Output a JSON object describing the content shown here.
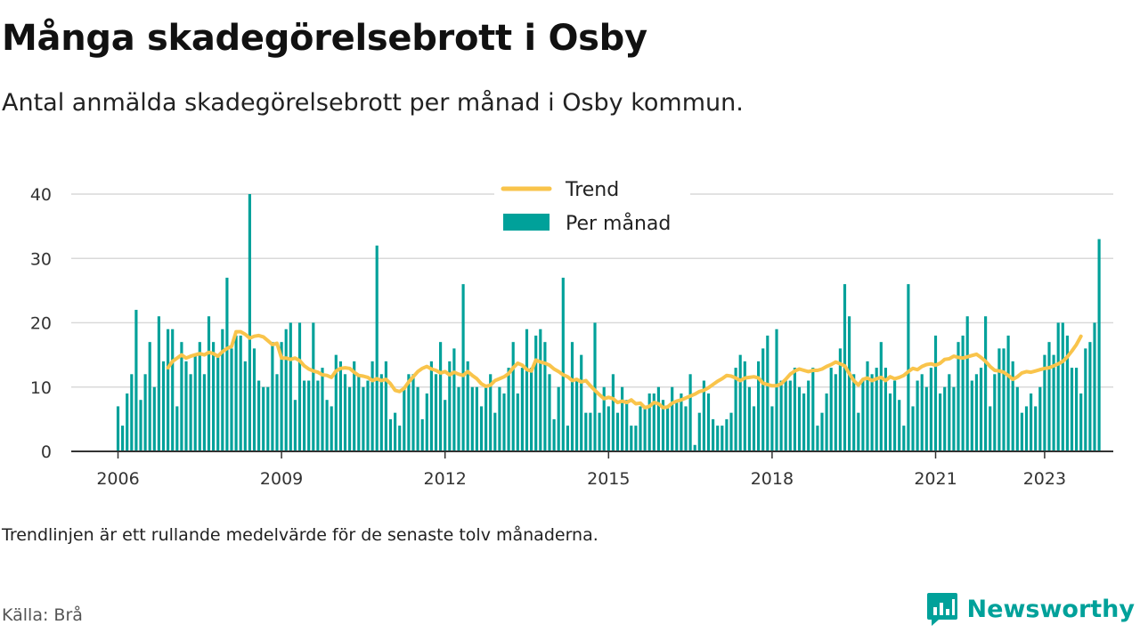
{
  "title": "Många skadegörelsebrott i Osby",
  "subtitle": "Antal anmälda skadegörelsebrott per månad i Osby kommun.",
  "note": "Trendlinjen är ett rullande medelvärde för de senaste tolv månaderna.",
  "source": "Källa: Brå",
  "brand": {
    "name": "Newsworthy",
    "icon": "bar-chart-logo-icon"
  },
  "colors": {
    "bars": "#00a19a",
    "trend": "#f9c44b",
    "grid": "#d9d9d9",
    "axis": "#333333"
  },
  "chart_data": {
    "type": "bar",
    "start": "2006-01",
    "frequency": "monthly",
    "ylim": [
      0,
      40
    ],
    "yticks": [
      0,
      10,
      20,
      30,
      40
    ],
    "xticks": [
      "2006",
      "2009",
      "2012",
      "2015",
      "2018",
      "2021",
      "2023"
    ],
    "grid": true,
    "legend": {
      "position": "top-center",
      "entries": [
        "Trend",
        "Per månad"
      ]
    },
    "series": [
      {
        "name": "Per månad",
        "type": "bar",
        "values": [
          7,
          4,
          9,
          12,
          22,
          8,
          12,
          17,
          10,
          21,
          14,
          19,
          19,
          7,
          17,
          14,
          12,
          15,
          17,
          12,
          21,
          17,
          15,
          19,
          27,
          16,
          18,
          18,
          14,
          40,
          16,
          11,
          10,
          10,
          17,
          12,
          17,
          19,
          20,
          8,
          20,
          11,
          11,
          20,
          11,
          13,
          8,
          7,
          15,
          14,
          12,
          10,
          14,
          12,
          10,
          11,
          14,
          32,
          12,
          14,
          5,
          6,
          4,
          10,
          12,
          12,
          10,
          5,
          9,
          14,
          12,
          17,
          8,
          14,
          16,
          10,
          26,
          14,
          10,
          10,
          7,
          10,
          12,
          6,
          10,
          9,
          13,
          17,
          9,
          13,
          19,
          13,
          18,
          19,
          17,
          12,
          5,
          10,
          27,
          4,
          17,
          11,
          15,
          6,
          6,
          20,
          6,
          10,
          7,
          12,
          6,
          10,
          8,
          4,
          4,
          7,
          7,
          9,
          9,
          10,
          8,
          7,
          10,
          8,
          9,
          7,
          12,
          1,
          6,
          11,
          9,
          5,
          4,
          4,
          5,
          6,
          13,
          15,
          14,
          10,
          7,
          14,
          16,
          18,
          7,
          19,
          11,
          11,
          11,
          13,
          10,
          9,
          11,
          13,
          4,
          6,
          9,
          13,
          12,
          16,
          26,
          21,
          12,
          6,
          11,
          14,
          12,
          13,
          17,
          13,
          9,
          11,
          8,
          4,
          26,
          7,
          11,
          12,
          10,
          13,
          18,
          9,
          10,
          12,
          10,
          17,
          18,
          21,
          11,
          12,
          13,
          21,
          7,
          12,
          16,
          16,
          18,
          14,
          10,
          6,
          7,
          9,
          7,
          10,
          15,
          17,
          15,
          20,
          20,
          18,
          13,
          13,
          9,
          16,
          17,
          20,
          33
        ]
      },
      {
        "name": "Trend",
        "type": "line",
        "start": "2006-12",
        "values": [
          13,
          14,
          14.5,
          15,
          14.5,
          14.8,
          15.0,
          15.2,
          15,
          15.4,
          15.2,
          14.8,
          15.5,
          16,
          16.3,
          18.6,
          18.6,
          18.2,
          17.6,
          17.9,
          18,
          17.8,
          17.2,
          16.6,
          16.8,
          14.5,
          14.5,
          14.3,
          14.5,
          14.1,
          13.3,
          12.8,
          12.5,
          12.3,
          11.9,
          11.8,
          11.5,
          12.5,
          12.9,
          13.0,
          12.9,
          12.3,
          11.8,
          11.7,
          11.5,
          11.0,
          11.3,
          11.0,
          11.2,
          10.5,
          9.5,
          9.3,
          9.8,
          10.8,
          11.6,
          12.4,
          12.9,
          13.2,
          12.8,
          12.6,
          12.2,
          12.4,
          11.9,
          12.3,
          12.0,
          11.8,
          12.4,
          11.8,
          11.3,
          10.5,
          10.1,
          10.3,
          11.0,
          11.3,
          11.6,
          12.1,
          13.0,
          13.7,
          13.4,
          12.7,
          12.5,
          14.2,
          13.9,
          13.7,
          13.4,
          12.8,
          12.4,
          11.9,
          11.6,
          11.0,
          11.2,
          10.8,
          11.0,
          10.2,
          9.5,
          8.8,
          8.2,
          8.4,
          8.2,
          7.6,
          7.8,
          7.6,
          8.0,
          7.4,
          7.5,
          6.8,
          7.0,
          7.6,
          7.4,
          6.8,
          6.9,
          7.5,
          7.8,
          8.0,
          8.3,
          8.6,
          8.9,
          9.3,
          9.5,
          9.9,
          10.4,
          10.9,
          11.3,
          11.8,
          11.7,
          11.4,
          11.0,
          11.4,
          11.5,
          11.6,
          11.4,
          10.6,
          10.4,
          10.2,
          10.2,
          10.5,
          11.2,
          12.0,
          12.5,
          12.8,
          12.6,
          12.4,
          12.6,
          12.6,
          12.8,
          13.2,
          13.5,
          13.9,
          13.6,
          13.3,
          12.1,
          11.0,
          10.3,
          11.2,
          11.4,
          11.0,
          11.3,
          11.5,
          11.0,
          11.6,
          11.3,
          11.5,
          11.8,
          12.4,
          12.9,
          12.7,
          13.2,
          13.5,
          13.6,
          13.4,
          13.7,
          14.3,
          14.4,
          14.8,
          14.6,
          14.5,
          14.7,
          14.9,
          15.1,
          14.6,
          14.0,
          13.2,
          12.6,
          12.5,
          12.3,
          11.8,
          11.2,
          11.6,
          12.2,
          12.4,
          12.3,
          12.5,
          12.7,
          12.9,
          13.0,
          13.3,
          13.6,
          14.0,
          14.7,
          15.6,
          16.6,
          17.9
        ]
      }
    ]
  }
}
